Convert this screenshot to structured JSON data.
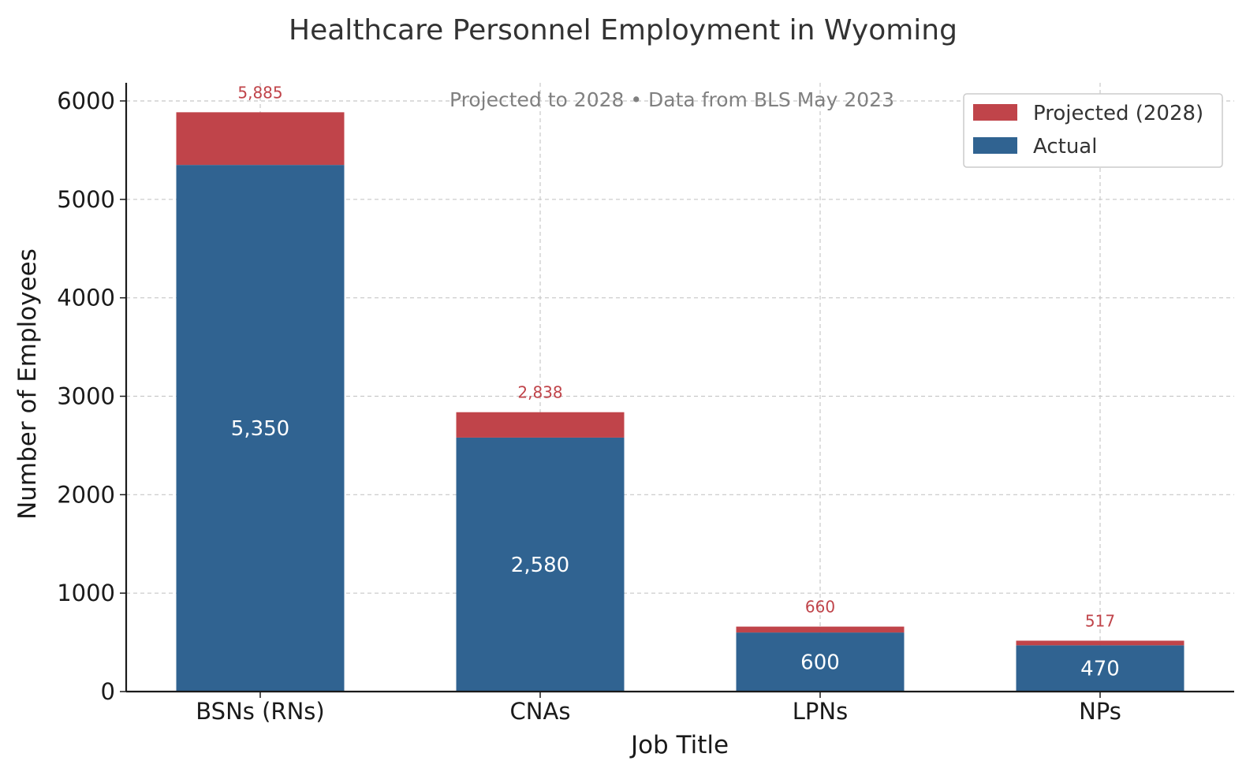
{
  "chart_data": {
    "type": "bar",
    "stacked": true,
    "title": "Healthcare Personnel Employment in Wyoming",
    "subtitle": "Projected to 2028 • Data from BLS May 2023",
    "xlabel": "Job Title",
    "ylabel": "Number of Employees",
    "categories": [
      "BSNs (RNs)",
      "CNAs",
      "LPNs",
      "NPs"
    ],
    "ylim": [
      0,
      6200
    ],
    "yticks": [
      0,
      1000,
      2000,
      3000,
      4000,
      5000,
      6000
    ],
    "grid": true,
    "legend_position": "top-right",
    "series": [
      {
        "name": "Actual",
        "color": "#306391",
        "values": [
          5350,
          2580,
          600,
          470
        ],
        "labels": [
          "5,350",
          "2,580",
          "600",
          "470"
        ]
      },
      {
        "name": "Projected (2028)",
        "color": "#c0444a",
        "totals": [
          5885,
          2838,
          660,
          517
        ],
        "labels": [
          "5,885",
          "2,838",
          "660",
          "517"
        ]
      }
    ],
    "legend": [
      "Projected (2028)",
      "Actual"
    ]
  }
}
